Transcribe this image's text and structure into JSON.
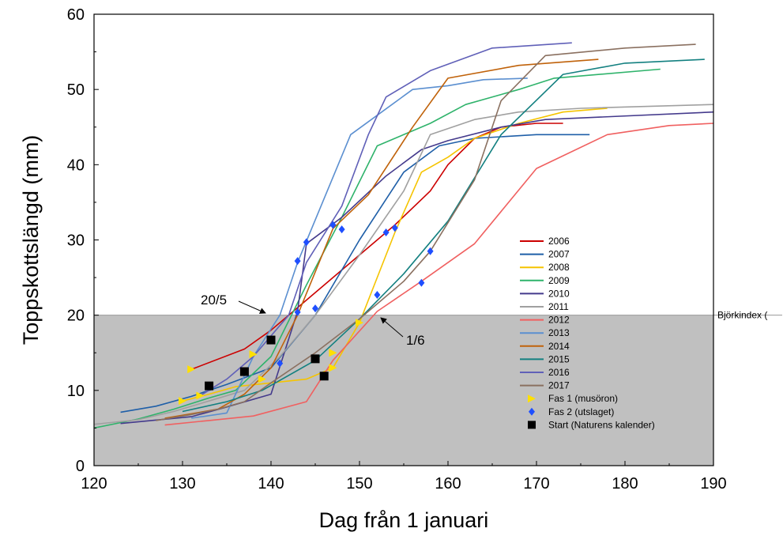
{
  "chart_data": {
    "type": "line",
    "xlabel": "Dag från 1 januari",
    "ylabel": "Toppskottslängd (mm)",
    "xlim": [
      120,
      190
    ],
    "ylim": [
      0,
      60
    ],
    "xticks": [
      120,
      130,
      140,
      150,
      160,
      170,
      180,
      190
    ],
    "yticks": [
      0,
      10,
      20,
      30,
      40,
      50,
      60
    ],
    "grid": false,
    "legend_position": "right-inside",
    "threshold": {
      "y": 20,
      "label": "Björkindex (",
      "color": "#c0c0c0"
    },
    "annotations": [
      {
        "text": "20/5",
        "x": 140,
        "y": 20
      },
      {
        "text": "1/6",
        "x": 152,
        "y": 20
      }
    ],
    "series": [
      {
        "name": "2006",
        "color": "#cc0000",
        "points": [
          [
            131,
            12.8
          ],
          [
            137,
            15.5
          ],
          [
            140,
            18
          ],
          [
            146,
            24
          ],
          [
            150,
            28
          ],
          [
            154,
            32
          ],
          [
            158,
            36.5
          ],
          [
            160,
            40
          ],
          [
            163,
            43.5
          ],
          [
            166,
            45
          ],
          [
            170,
            45.5
          ],
          [
            173,
            45.5
          ]
        ]
      },
      {
        "name": "2007",
        "color": "#1f5fa8",
        "points": [
          [
            123,
            7.1
          ],
          [
            127,
            7.9
          ],
          [
            131,
            9.2
          ],
          [
            135,
            10.8
          ],
          [
            140,
            13
          ],
          [
            145,
            20
          ],
          [
            150,
            30
          ],
          [
            155,
            39
          ],
          [
            159,
            42.5
          ],
          [
            163,
            43.5
          ],
          [
            170,
            44
          ],
          [
            176,
            44
          ]
        ]
      },
      {
        "name": "2008",
        "color": "#f5c400",
        "points": [
          [
            130,
            8.6
          ],
          [
            133,
            9.5
          ],
          [
            136,
            10.5
          ],
          [
            140,
            11
          ],
          [
            144,
            11.5
          ],
          [
            147,
            13
          ],
          [
            150,
            19
          ],
          [
            154,
            31
          ],
          [
            157,
            39
          ],
          [
            160,
            41
          ],
          [
            163,
            43.5
          ],
          [
            168,
            45.5
          ],
          [
            173,
            47
          ],
          [
            178,
            47.5
          ]
        ]
      },
      {
        "name": "2009",
        "color": "#2fb36b",
        "points": [
          [
            120,
            5
          ],
          [
            125,
            6.2
          ],
          [
            129,
            7.5
          ],
          [
            133,
            9
          ],
          [
            136,
            10
          ],
          [
            140,
            14.5
          ],
          [
            144,
            24
          ],
          [
            148,
            33
          ],
          [
            152,
            42.5
          ],
          [
            158,
            45.5
          ],
          [
            162,
            48
          ],
          [
            168,
            50
          ],
          [
            172,
            51.5
          ],
          [
            184,
            52.7
          ]
        ]
      },
      {
        "name": "2010",
        "color": "#443a8c",
        "points": [
          [
            123,
            5.6
          ],
          [
            131,
            6.5
          ],
          [
            135,
            7.8
          ],
          [
            140,
            9.5
          ],
          [
            143,
            20.5
          ],
          [
            144,
            29.5
          ],
          [
            148,
            33
          ],
          [
            153,
            38.5
          ],
          [
            157,
            42
          ],
          [
            160,
            43.2
          ],
          [
            166,
            45
          ],
          [
            171,
            46
          ],
          [
            190,
            47
          ]
        ]
      },
      {
        "name": "2011",
        "color": "#a0a0a0",
        "points": [
          [
            120,
            5.5
          ],
          [
            125,
            6.1
          ],
          [
            129,
            7.2
          ],
          [
            133,
            8.6
          ],
          [
            137,
            10
          ],
          [
            141,
            14.5
          ],
          [
            145,
            20
          ],
          [
            150,
            28
          ],
          [
            155,
            36.5
          ],
          [
            158,
            44
          ],
          [
            163,
            46
          ],
          [
            168,
            47
          ],
          [
            175,
            47.5
          ],
          [
            190,
            48
          ]
        ]
      },
      {
        "name": "2012",
        "color": "#f06060",
        "points": [
          [
            128,
            5.4
          ],
          [
            133,
            6
          ],
          [
            138,
            6.6
          ],
          [
            144,
            8.5
          ],
          [
            147,
            14
          ],
          [
            152,
            20.5
          ],
          [
            157,
            24.5
          ],
          [
            163,
            29.5
          ],
          [
            170,
            39.5
          ],
          [
            178,
            44
          ],
          [
            185,
            45.2
          ],
          [
            190,
            45.5
          ]
        ]
      },
      {
        "name": "2013",
        "color": "#5b8fd0",
        "points": [
          [
            131,
            6.3
          ],
          [
            135,
            7
          ],
          [
            138,
            14.5
          ],
          [
            141,
            20
          ],
          [
            143,
            27
          ],
          [
            149,
            44
          ],
          [
            156,
            50
          ],
          [
            160,
            50.5
          ],
          [
            164,
            51.3
          ],
          [
            169,
            51.5
          ]
        ]
      },
      {
        "name": "2014",
        "color": "#c0620a",
        "points": [
          [
            128,
            6.3
          ],
          [
            134,
            7.5
          ],
          [
            137,
            9.5
          ],
          [
            140,
            13
          ],
          [
            143,
            20
          ],
          [
            147,
            31.5
          ],
          [
            151,
            36
          ],
          [
            156,
            45
          ],
          [
            160,
            51.5
          ],
          [
            168,
            53.2
          ],
          [
            177,
            54
          ]
        ]
      },
      {
        "name": "2015",
        "color": "#138080",
        "points": [
          [
            130,
            7.2
          ],
          [
            135,
            8.5
          ],
          [
            139,
            10
          ],
          [
            145,
            14
          ],
          [
            150,
            19.5
          ],
          [
            155,
            25.5
          ],
          [
            160,
            32.5
          ],
          [
            166,
            44
          ],
          [
            173,
            52
          ],
          [
            180,
            53.5
          ],
          [
            189,
            54
          ]
        ]
      },
      {
        "name": "2016",
        "color": "#6060b8",
        "points": [
          [
            132,
            9.3
          ],
          [
            135,
            11.5
          ],
          [
            138,
            14.5
          ],
          [
            142,
            20
          ],
          [
            144,
            27
          ],
          [
            148,
            34.5
          ],
          [
            151,
            44
          ],
          [
            153,
            49
          ],
          [
            158,
            52.5
          ],
          [
            165,
            55.5
          ],
          [
            174,
            56.2
          ]
        ]
      },
      {
        "name": "2017",
        "color": "#8a7060",
        "points": [
          [
            127,
            6
          ],
          [
            131,
            6.8
          ],
          [
            134,
            7.5
          ],
          [
            137,
            8.5
          ],
          [
            140,
            11
          ],
          [
            145,
            15
          ],
          [
            150,
            19.5
          ],
          [
            155,
            24.5
          ],
          [
            158,
            28.5
          ],
          [
            163,
            38
          ],
          [
            166,
            48.5
          ],
          [
            171,
            54.5
          ],
          [
            180,
            55.5
          ],
          [
            188,
            56
          ]
        ]
      }
    ],
    "markers": [
      {
        "name": "Fas 1 (musöron)",
        "shape": "triangle-right",
        "color": "#ffe000",
        "points": [
          [
            131,
            12.8
          ],
          [
            130,
            8.6
          ],
          [
            132,
            9.3
          ],
          [
            138,
            14.8
          ],
          [
            139,
            11.5
          ],
          [
            147,
            15
          ],
          [
            147,
            13
          ],
          [
            150,
            19
          ]
        ]
      },
      {
        "name": "Fas 2 (utslaget)",
        "shape": "diamond",
        "color": "#1f4fff",
        "points": [
          [
            141,
            13.6
          ],
          [
            143,
            20.4
          ],
          [
            143,
            27.2
          ],
          [
            144,
            29.7
          ],
          [
            145,
            20.9
          ],
          [
            147,
            32
          ],
          [
            148,
            31.4
          ],
          [
            152,
            22.7
          ],
          [
            153,
            31
          ],
          [
            154,
            31.6
          ],
          [
            157,
            24.3
          ],
          [
            158,
            28.5
          ]
        ]
      },
      {
        "name": "Start (Naturens kalender)",
        "shape": "square",
        "color": "#000000",
        "points": [
          [
            133,
            10.6
          ],
          [
            137,
            12.5
          ],
          [
            140,
            16.7
          ],
          [
            145,
            14.2
          ],
          [
            146,
            11.9
          ]
        ]
      }
    ]
  }
}
